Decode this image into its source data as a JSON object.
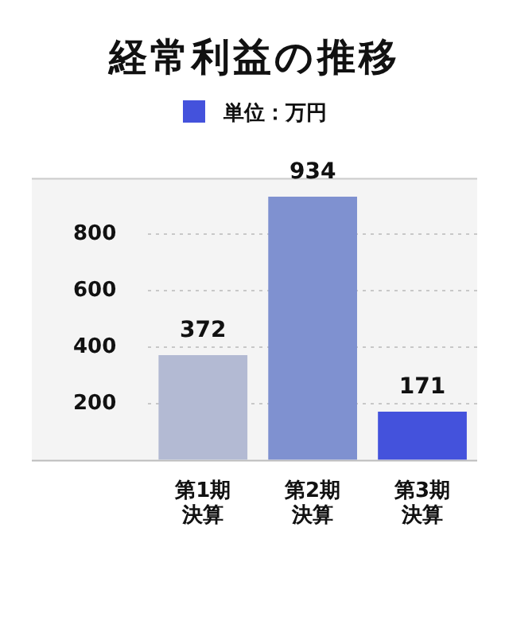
{
  "chart_data": {
    "type": "bar",
    "title": "経常利益の推移",
    "categories": [
      "第1期決算",
      "第2期決算",
      "第3期決算"
    ],
    "series": [
      {
        "name": "単位：万円",
        "color": "#4452dc",
        "colors": [
          "#b3bad3",
          "#7f91d0",
          "#4452dc"
        ],
        "values": [
          372,
          934,
          171
        ]
      }
    ],
    "ylim": [
      0,
      1000
    ],
    "yticks": [
      200,
      400,
      600,
      800
    ],
    "grid": "y",
    "legend": "top",
    "data_labels": true
  }
}
